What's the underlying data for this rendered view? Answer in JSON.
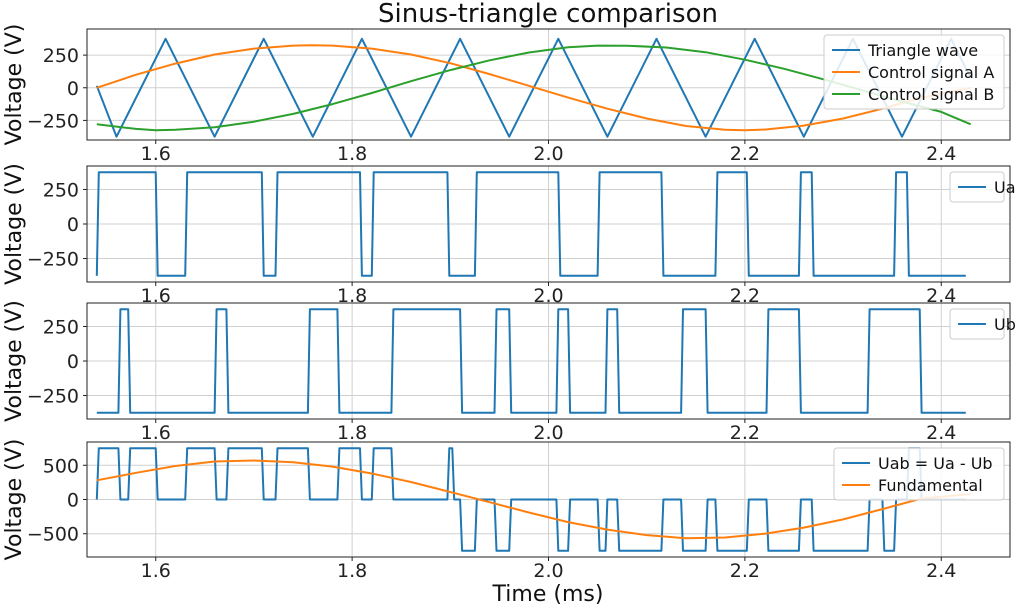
{
  "chart_data": {
    "type": "line",
    "title": "Sinus-triangle comparison",
    "xlabel": "Time (ms)",
    "xlim": [
      1.53,
      2.47
    ],
    "x_ticks": [
      1.6,
      1.8,
      2.0,
      2.2,
      2.4
    ],
    "x_tick_labels": [
      "1.6",
      "1.8",
      "2.0",
      "2.2",
      "2.4"
    ],
    "grid": true,
    "colors": {
      "blue": "#1f77b4",
      "orange": "#ff7f0e",
      "green": "#2ca02c"
    },
    "panels": [
      {
        "ylabel": "Voltage (V)",
        "ylim": [
          -400,
          450
        ],
        "y_ticks": [
          -250,
          0,
          250
        ],
        "y_tick_labels": [
          "−250",
          "0",
          "250"
        ],
        "legend_position": "top-right",
        "series": [
          {
            "name": "Triangle wave",
            "color": "#1f77b4",
            "x": [
              1.54,
              1.56,
              1.61,
              1.66,
              1.71,
              1.76,
              1.81,
              1.86,
              1.91,
              1.96,
              2.01,
              2.06,
              2.11,
              2.16,
              2.21,
              2.26,
              2.31,
              2.36,
              2.41,
              2.43
            ],
            "y": [
              15,
              -375,
              375,
              -375,
              375,
              -375,
              375,
              -375,
              375,
              -375,
              375,
              -375,
              375,
              -375,
              375,
              -375,
              375,
              -375,
              375,
              75
            ]
          },
          {
            "name": "Control signal A",
            "color": "#ff7f0e",
            "x": [
              1.54,
              1.58,
              1.62,
              1.66,
              1.7,
              1.74,
              1.76,
              1.78,
              1.82,
              1.86,
              1.9,
              1.94,
              1.98,
              2.02,
              2.06,
              2.1,
              2.14,
              2.18,
              2.2,
              2.22,
              2.26,
              2.3,
              2.34,
              2.38,
              2.43
            ],
            "y": [
              0,
              100,
              185,
              255,
              300,
              323,
              325,
              323,
              300,
              255,
              188,
              105,
              15,
              -75,
              -160,
              -235,
              -293,
              -322,
              -325,
              -320,
              -290,
              -235,
              -160,
              -75,
              0
            ]
          },
          {
            "name": "Control signal B",
            "color": "#2ca02c",
            "x": [
              1.54,
              1.58,
              1.6,
              1.62,
              1.66,
              1.7,
              1.74,
              1.78,
              1.82,
              1.86,
              1.9,
              1.94,
              1.98,
              2.02,
              2.05,
              2.08,
              2.12,
              2.16,
              2.2,
              2.24,
              2.28,
              2.32,
              2.36,
              2.4,
              2.43
            ],
            "y": [
              -280,
              -315,
              -325,
              -322,
              -303,
              -260,
              -200,
              -125,
              -40,
              50,
              135,
              210,
              270,
              310,
              323,
              322,
              308,
              272,
              215,
              145,
              65,
              -20,
              -105,
              -185,
              -280
            ]
          }
        ]
      },
      {
        "ylabel": "Voltage (V)",
        "ylim": [
          -420,
          420
        ],
        "y_ticks": [
          -250,
          0,
          250
        ],
        "y_tick_labels": [
          "−250",
          "0",
          "250"
        ],
        "legend_position": "top-right",
        "series": [
          {
            "name": "Ua",
            "color": "#1f77b4",
            "x": [
              1.54,
              1.542,
              1.6,
              1.602,
              1.63,
              1.632,
              1.708,
              1.71,
              1.722,
              1.724,
              1.808,
              1.81,
              1.82,
              1.822,
              1.897,
              1.899,
              1.925,
              1.927,
              2.01,
              2.012,
              2.05,
              2.052,
              2.115,
              2.117,
              2.17,
              2.172,
              2.202,
              2.204,
              2.255,
              2.257,
              2.268,
              2.27,
              2.352,
              2.354,
              2.365,
              2.367,
              2.425
            ],
            "y": [
              -375,
              375,
              375,
              -375,
              -375,
              375,
              375,
              -375,
              -375,
              375,
              375,
              -375,
              -375,
              375,
              375,
              -375,
              -375,
              375,
              375,
              -375,
              -375,
              375,
              375,
              -375,
              -375,
              375,
              375,
              -375,
              -375,
              375,
              375,
              -375,
              -375,
              375,
              375,
              -375,
              -375
            ]
          }
        ]
      },
      {
        "ylabel": "Voltage (V)",
        "ylim": [
          -420,
          420
        ],
        "y_ticks": [
          -250,
          0,
          250
        ],
        "y_tick_labels": [
          "−250",
          "0",
          "250"
        ],
        "legend_position": "top-right",
        "series": [
          {
            "name": "Ub",
            "color": "#1f77b4",
            "x": [
              1.54,
              1.562,
              1.564,
              1.572,
              1.574,
              1.66,
              1.662,
              1.672,
              1.674,
              1.755,
              1.757,
              1.785,
              1.787,
              1.84,
              1.842,
              1.91,
              1.912,
              1.945,
              1.947,
              1.96,
              1.962,
              2.008,
              2.01,
              2.02,
              2.022,
              2.058,
              2.06,
              2.07,
              2.072,
              2.135,
              2.137,
              2.16,
              2.162,
              2.222,
              2.224,
              2.255,
              2.257,
              2.325,
              2.327,
              2.378,
              2.38,
              2.425
            ],
            "y": [
              -375,
              -375,
              375,
              375,
              -375,
              -375,
              375,
              375,
              -375,
              -375,
              375,
              375,
              -375,
              -375,
              375,
              375,
              -375,
              -375,
              375,
              375,
              -375,
              -375,
              375,
              375,
              -375,
              -375,
              375,
              375,
              -375,
              -375,
              375,
              375,
              -375,
              -375,
              375,
              375,
              -375,
              -375,
              375,
              375,
              -375,
              -375
            ]
          }
        ]
      },
      {
        "ylabel": "Voltage (V)",
        "xlabel": "Time (ms)",
        "ylim": [
          -840,
          840
        ],
        "y_ticks": [
          -500,
          0,
          500
        ],
        "y_tick_labels": [
          "−500",
          "0",
          "500"
        ],
        "legend_position": "top-right",
        "series": [
          {
            "name": "Uab = Ua - Ub",
            "color": "#1f77b4",
            "x": [
              1.54,
              1.542,
              1.562,
              1.564,
              1.572,
              1.574,
              1.6,
              1.602,
              1.63,
              1.632,
              1.66,
              1.662,
              1.672,
              1.674,
              1.708,
              1.71,
              1.722,
              1.724,
              1.755,
              1.757,
              1.785,
              1.787,
              1.808,
              1.81,
              1.82,
              1.822,
              1.84,
              1.842,
              1.897,
              1.899,
              1.902,
              1.904,
              1.91,
              1.912,
              1.925,
              1.927,
              1.945,
              1.947,
              1.96,
              1.962,
              2.008,
              2.01,
              2.012,
              2.02,
              2.022,
              2.05,
              2.052,
              2.058,
              2.06,
              2.07,
              2.072,
              2.115,
              2.117,
              2.135,
              2.137,
              2.16,
              2.162,
              2.17,
              2.172,
              2.202,
              2.204,
              2.222,
              2.224,
              2.255,
              2.257,
              2.268,
              2.27,
              2.325,
              2.327,
              2.34,
              2.342,
              2.352,
              2.354,
              2.365,
              2.367,
              2.378,
              2.38,
              2.425
            ],
            "y": [
              0,
              750,
              750,
              0,
              0,
              750,
              750,
              0,
              0,
              750,
              750,
              0,
              0,
              750,
              750,
              0,
              0,
              750,
              750,
              0,
              0,
              750,
              750,
              0,
              0,
              750,
              750,
              0,
              0,
              750,
              750,
              0,
              0,
              -750,
              -750,
              0,
              0,
              -750,
              -750,
              0,
              0,
              -750,
              -750,
              -750,
              0,
              0,
              -750,
              -750,
              0,
              0,
              -750,
              -750,
              0,
              0,
              -750,
              -750,
              0,
              0,
              -750,
              -750,
              0,
              0,
              -750,
              -750,
              0,
              0,
              -750,
              -750,
              0,
              0,
              -750,
              -750,
              0,
              0,
              750,
              750,
              0,
              0
            ]
          },
          {
            "name": "Fundamental",
            "color": "#ff7f0e",
            "x": [
              1.54,
              1.58,
              1.62,
              1.66,
              1.7,
              1.74,
              1.78,
              1.82,
              1.86,
              1.9,
              1.94,
              1.98,
              2.02,
              2.06,
              2.1,
              2.14,
              2.18,
              2.22,
              2.26,
              2.3,
              2.34,
              2.38,
              2.43
            ],
            "y": [
              280,
              390,
              490,
              555,
              570,
              545,
              480,
              380,
              255,
              110,
              -40,
              -190,
              -330,
              -440,
              -520,
              -565,
              -555,
              -500,
              -410,
              -290,
              -140,
              15,
              80
            ]
          }
        ]
      }
    ]
  }
}
